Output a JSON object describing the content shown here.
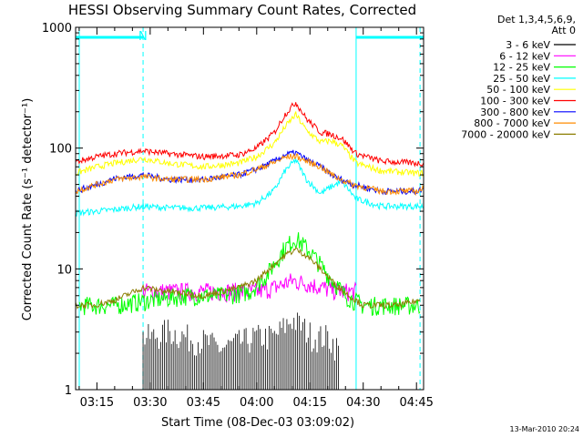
{
  "chart_data": {
    "type": "line",
    "title": "HESSI Observing Summary Count Rates, Corrected",
    "xlabel": "Start Time (08-Dec-03 03:09:02)",
    "ylabel": "Corrected Count Rate (s⁻¹ detector⁻¹)",
    "y_scale": "log",
    "ylim": [
      1,
      1000
    ],
    "xlim": [
      "03:09",
      "04:47"
    ],
    "x_ticks": [
      "03:15",
      "03:30",
      "03:45",
      "04:00",
      "04:15",
      "04:30",
      "04:45"
    ],
    "y_ticks": [
      "1",
      "10",
      "100",
      "1000"
    ],
    "legend_header": [
      "Det 1,3,4,5,6,9,",
      "Att 0"
    ],
    "legend_placement": "right",
    "annotation": "N",
    "timestamp": "13-Mar-2010 20:24",
    "series": [
      {
        "name": "3 - 6 keV",
        "color": "#000000",
        "x": [
          "03:28",
          "03:31",
          "03:35",
          "03:40",
          "03:45",
          "03:50",
          "04:00",
          "04:05",
          "04:10",
          "04:13",
          "04:16",
          "04:20",
          "04:23"
        ],
        "values": [
          2.5,
          2.5,
          2.8,
          2.5,
          2.3,
          2.0,
          2.5,
          2.5,
          3.5,
          3.0,
          2.5,
          2.5,
          2.0
        ]
      },
      {
        "name": "6 - 12 keV",
        "color": "#ff00ff",
        "x": [
          "03:28",
          "03:35",
          "03:45",
          "03:55",
          "04:00",
          "04:05",
          "04:10",
          "04:15",
          "04:20",
          "04:25",
          "04:28"
        ],
        "values": [
          6.5,
          6.5,
          6.5,
          6.5,
          6.5,
          7.0,
          8.0,
          7.5,
          6.8,
          6.5,
          6.5
        ]
      },
      {
        "name": "12 - 25 keV",
        "color": "#00ff00",
        "x": [
          "03:10",
          "03:14",
          "03:20",
          "03:30",
          "03:40",
          "03:50",
          "03:58",
          "04:03",
          "04:08",
          "04:11",
          "04:15",
          "04:20",
          "04:25",
          "04:30",
          "04:40",
          "04:46"
        ],
        "values": [
          5,
          5,
          5,
          5.5,
          6,
          6,
          6.5,
          9,
          15,
          18,
          14,
          9,
          6,
          5,
          5,
          5
        ]
      },
      {
        "name": "25 - 50 keV",
        "color": "#00ffff",
        "x": [
          "03:09",
          "03:15",
          "03:20",
          "03:28",
          "03:35",
          "03:45",
          "03:55",
          "04:00",
          "04:05",
          "04:08",
          "04:11",
          "04:14",
          "04:18",
          "04:21",
          "04:24",
          "04:28",
          "04:35",
          "04:45",
          "04:47"
        ],
        "values": [
          29,
          30,
          31,
          33,
          32,
          32,
          33,
          35,
          45,
          65,
          80,
          55,
          42,
          48,
          53,
          38,
          33,
          33,
          33
        ]
      },
      {
        "name": "50 - 100 keV",
        "color": "#ffff00",
        "x": [
          "03:09",
          "03:15",
          "03:20",
          "03:28",
          "03:35",
          "03:45",
          "03:55",
          "04:00",
          "04:05",
          "04:08",
          "04:11",
          "04:14",
          "04:18",
          "04:21",
          "04:24",
          "04:28",
          "04:35",
          "04:45",
          "04:47"
        ],
        "values": [
          62,
          70,
          75,
          82,
          75,
          70,
          75,
          85,
          110,
          150,
          190,
          140,
          112,
          115,
          105,
          75,
          65,
          62,
          62
        ]
      },
      {
        "name": "100 - 300 keV",
        "color": "#ff0000",
        "x": [
          "03:09",
          "03:15",
          "03:20",
          "03:28",
          "03:35",
          "03:45",
          "03:55",
          "04:00",
          "04:05",
          "04:08",
          "04:11",
          "04:14",
          "04:18",
          "04:21",
          "04:24",
          "04:28",
          "04:35",
          "04:45",
          "04:47"
        ],
        "values": [
          77,
          85,
          90,
          95,
          90,
          85,
          88,
          100,
          135,
          190,
          240,
          175,
          135,
          130,
          120,
          90,
          78,
          75,
          75
        ]
      },
      {
        "name": "300 - 800 keV",
        "color": "#0000ff",
        "x": [
          "03:09",
          "03:15",
          "03:20",
          "03:28",
          "03:35",
          "03:45",
          "03:55",
          "04:00",
          "04:05",
          "04:08",
          "04:11",
          "04:14",
          "04:18",
          "04:22",
          "04:27",
          "04:35",
          "04:45",
          "04:47"
        ],
        "values": [
          44,
          50,
          56,
          60,
          55,
          55,
          60,
          67,
          78,
          88,
          92,
          80,
          70,
          58,
          50,
          44,
          44,
          46
        ]
      },
      {
        "name": "800 - 7000 keV",
        "color": "#ff8c00",
        "x": [
          "03:09",
          "03:15",
          "03:20",
          "03:28",
          "03:35",
          "03:45",
          "03:55",
          "04:00",
          "04:05",
          "04:08",
          "04:11",
          "04:14",
          "04:18",
          "04:22",
          "04:27",
          "04:35",
          "04:45",
          "04:47"
        ],
        "values": [
          44,
          50,
          55,
          58,
          55,
          55,
          60,
          67,
          76,
          84,
          86,
          78,
          70,
          58,
          50,
          44,
          44,
          46
        ]
      },
      {
        "name": "7000 - 20000 keV",
        "color": "#8b7d00",
        "x": [
          "03:09",
          "03:14",
          "03:20",
          "03:28",
          "03:35",
          "03:45",
          "03:55",
          "04:00",
          "04:05",
          "04:08",
          "04:11",
          "04:14",
          "04:18",
          "04:22",
          "04:26",
          "04:30",
          "04:35",
          "04:40",
          "04:46"
        ],
        "values": [
          5,
          5,
          5.5,
          7,
          6.5,
          6,
          7,
          8,
          11,
          13,
          14.5,
          13,
          10,
          7.5,
          6,
          5,
          5,
          5,
          5.5
        ]
      }
    ]
  }
}
